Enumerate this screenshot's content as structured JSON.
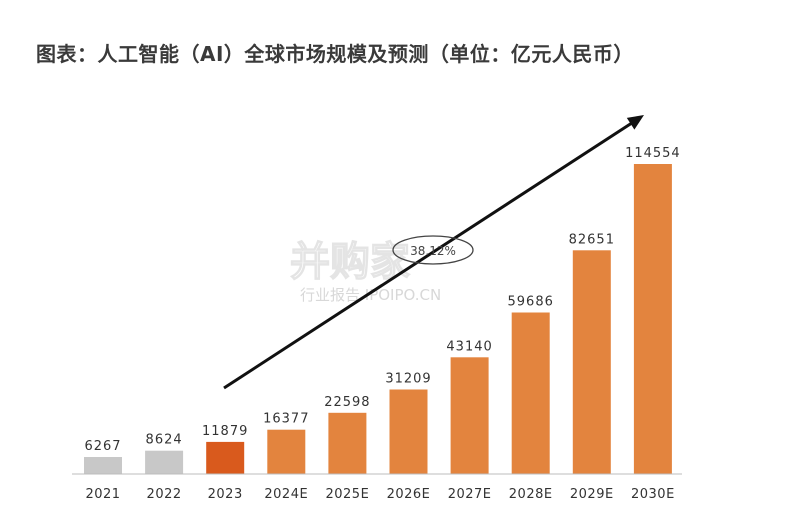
{
  "title": "图表：人工智能（AI）全球市场规模及预测（单位：亿元人民币）",
  "watermark": {
    "main": "并购家",
    "sub": "行业报告 IPOIPO.CN"
  },
  "colors": {
    "historical": "#c8c8c8",
    "current": "#d95a1d",
    "forecast": "#e3843e",
    "text": "#333333",
    "arrow": "#111111"
  },
  "chart_data": {
    "type": "bar",
    "title": "图表：人工智能（AI）全球市场规模及预测（单位：亿元人民币）",
    "categories": [
      "2021",
      "2022",
      "2023",
      "2024E",
      "2025E",
      "2026E",
      "2027E",
      "2028E",
      "2029E",
      "2030E"
    ],
    "values": [
      6267,
      8624,
      11879,
      16377,
      22598,
      31209,
      43140,
      59686,
      82651,
      114554
    ],
    "bar_kind": [
      "historical",
      "historical",
      "current",
      "forecast",
      "forecast",
      "forecast",
      "forecast",
      "forecast",
      "forecast",
      "forecast"
    ],
    "annotation": "38.12%",
    "trend_arrow": true,
    "ylim": [
      0,
      120000
    ],
    "grid": false,
    "legend": "none"
  }
}
